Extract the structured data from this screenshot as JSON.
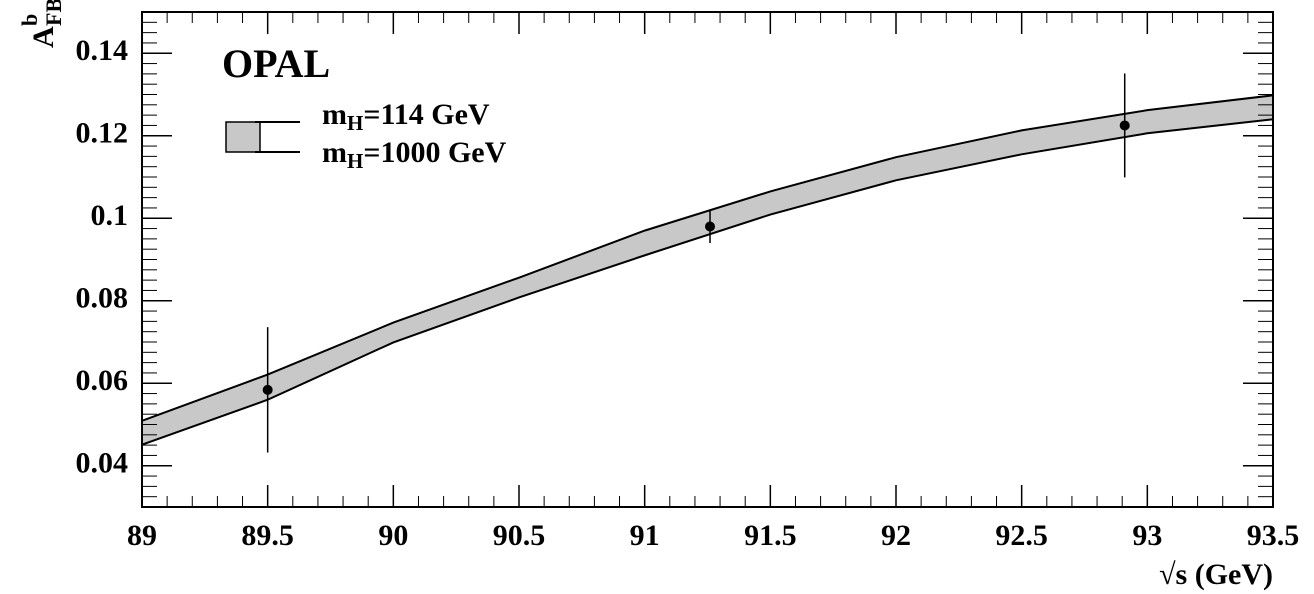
{
  "chart_data": {
    "type": "line",
    "annotation": "OPAL",
    "x_label": "√s (GeV)",
    "y_label": {
      "base": "A",
      "sup": "b",
      "sub": "FB"
    },
    "x": [
      89,
      89.5,
      90,
      90.5,
      91,
      91.5,
      92,
      92.5,
      93,
      93.5
    ],
    "series": [
      {
        "name": "mH=114 GeV",
        "color": "#000000",
        "values": [
          0.0509,
          0.0621,
          0.0747,
          0.0856,
          0.097,
          0.1065,
          0.1148,
          0.1213,
          0.1262,
          0.1298
        ]
      },
      {
        "name": "mH=1000 GeV",
        "color": "#000000",
        "values": [
          0.0451,
          0.056,
          0.0699,
          0.0808,
          0.091,
          0.1009,
          0.1092,
          0.1155,
          0.1206,
          0.124
        ]
      }
    ],
    "band_color": "#c8c8c8",
    "points": {
      "x": [
        89.5,
        91.26,
        92.91
      ],
      "values": [
        0.0584,
        0.098,
        0.1225
      ],
      "errors": [
        0.0152,
        0.004,
        0.0126
      ],
      "color": "#000000"
    },
    "xlim": [
      89,
      93.5
    ],
    "xticks": [
      89,
      89.5,
      90,
      90.5,
      91,
      91.5,
      92,
      92.5,
      93,
      93.5
    ],
    "ylim": [
      0.03,
      0.15
    ],
    "yticks": [
      0.04,
      0.06,
      0.08,
      0.1,
      0.12,
      0.14
    ]
  }
}
